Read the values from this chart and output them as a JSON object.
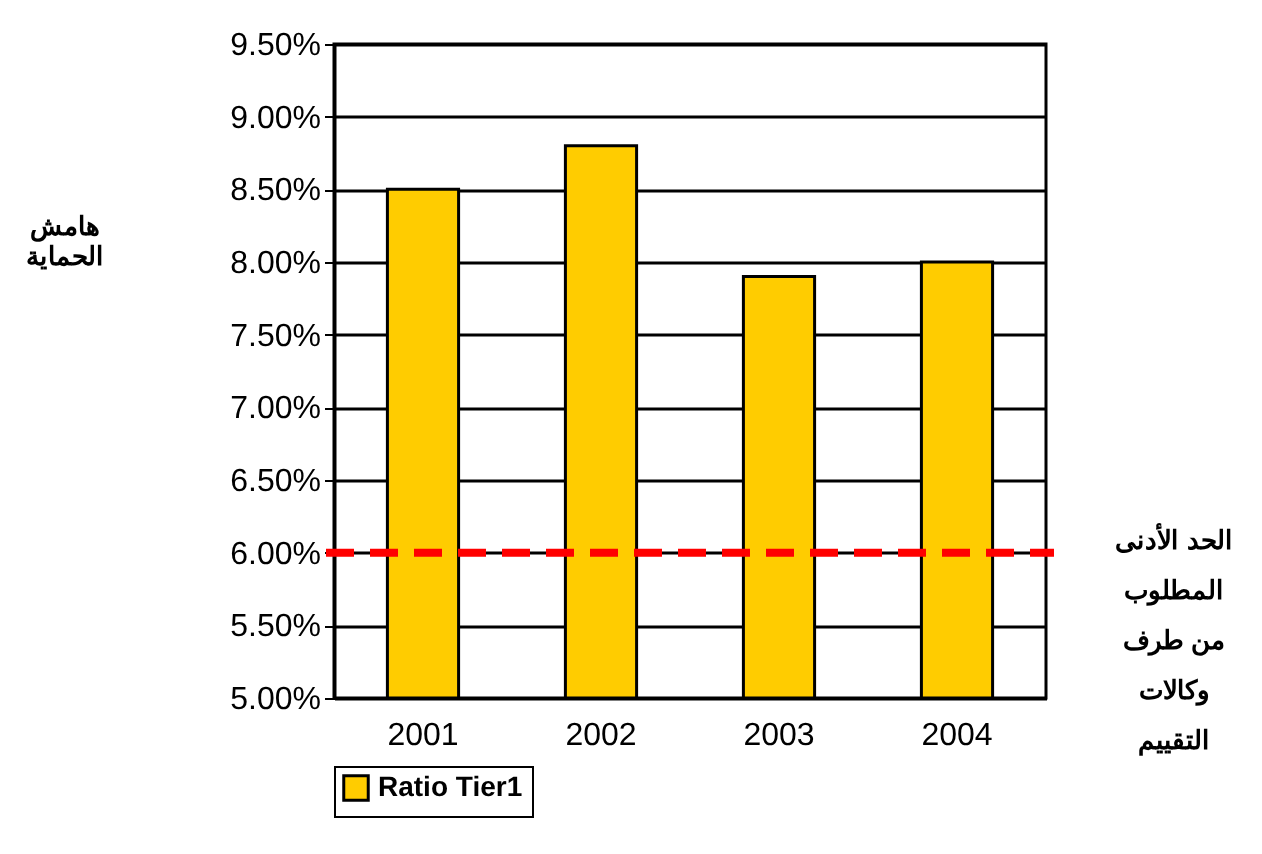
{
  "chart_data": {
    "type": "bar",
    "ylabel": "هامش\nالحماية",
    "categories": [
      "2001",
      "2002",
      "2003",
      "2004"
    ],
    "series": [
      {
        "name": "Ratio Tier1",
        "color": "#ffcc00",
        "values": [
          8.5,
          8.8,
          7.9,
          8.0
        ]
      }
    ],
    "ylim": [
      5.0,
      9.5
    ],
    "yticks": [
      {
        "value": 5.0,
        "label": "5.00%"
      },
      {
        "value": 5.5,
        "label": "5.50%"
      },
      {
        "value": 6.0,
        "label": "6.00%"
      },
      {
        "value": 6.5,
        "label": "6.50%"
      },
      {
        "value": 7.0,
        "label": "7.00%"
      },
      {
        "value": 7.5,
        "label": "7.50%"
      },
      {
        "value": 8.0,
        "label": "8.00%"
      },
      {
        "value": 8.5,
        "label": "8.50%"
      },
      {
        "value": 9.0,
        "label": "9.00%"
      },
      {
        "value": 9.5,
        "label": "9.50%"
      }
    ],
    "grid": "y",
    "legend": "bottom",
    "ref_lines": [
      {
        "axis": "y",
        "value": 6.0,
        "label": "الحد الأدنى\nالمطلوب\nمن طرف\nوكالات\nالتقييم",
        "color": "#ff0000",
        "line_style": "dashed"
      }
    ]
  }
}
